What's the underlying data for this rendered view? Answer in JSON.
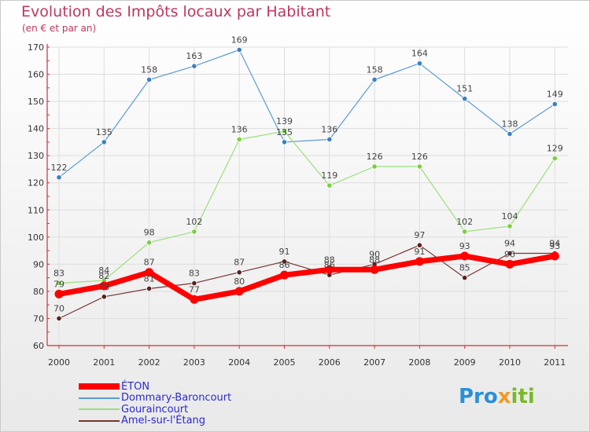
{
  "header": {
    "title": "Evolution des Impôts locaux par Habitant",
    "subtitle": "(en € et par an)"
  },
  "logo": {
    "text": "Proxiti"
  },
  "colors": {
    "title": "#c0365f",
    "eton": "#ff0000",
    "dommary": "#5b9bd5",
    "gouraincourt": "#99e07a",
    "amel": "#7a3434",
    "legend_text": "#2a2ad0",
    "axis": "#cc3333",
    "grid": "#dddddd"
  },
  "chart_data": {
    "type": "line",
    "title": "Evolution des Impôts locaux par Habitant",
    "subtitle": "(en € et par an)",
    "xlabel": "",
    "ylabel": "",
    "categories": [
      "2000",
      "2001",
      "2002",
      "2003",
      "2004",
      "2005",
      "2006",
      "2007",
      "2008",
      "2009",
      "2010",
      "2011"
    ],
    "ylim": [
      60,
      170
    ],
    "yticks": [
      60,
      70,
      80,
      90,
      100,
      110,
      120,
      130,
      140,
      150,
      160,
      170
    ],
    "grid": true,
    "legend_position": "bottom-left",
    "series": [
      {
        "name": "ÉTON",
        "color": "#ff0000",
        "values": [
          79,
          82,
          87,
          77,
          80,
          86,
          88,
          88,
          91,
          93,
          90,
          93
        ]
      },
      {
        "name": "Dommary-Baroncourt",
        "color": "#5b9bd5",
        "values": [
          122,
          135,
          158,
          163,
          169,
          135,
          136,
          158,
          164,
          151,
          138,
          149
        ]
      },
      {
        "name": "Gouraincourt",
        "color": "#99e07a",
        "values": [
          83,
          84,
          98,
          102,
          136,
          139,
          119,
          126,
          126,
          102,
          104,
          129
        ]
      },
      {
        "name": "Amel-sur-l'Étang",
        "color": "#7a3434",
        "values": [
          70,
          78,
          81,
          83,
          87,
          91,
          86,
          90,
          97,
          85,
          94,
          94
        ]
      }
    ]
  }
}
